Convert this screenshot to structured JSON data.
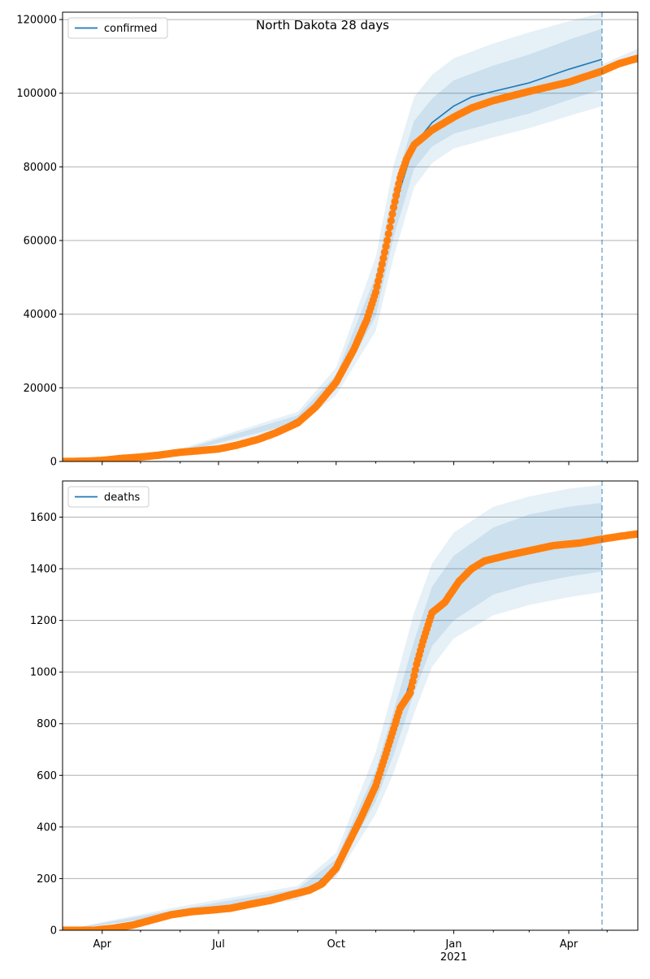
{
  "chart_data": {
    "type": "line",
    "title": "North Dakota 28 days",
    "x_start": "2020-03-01",
    "x_end": "2021-05-25",
    "forecast_date": "2021-04-27",
    "x_ticks_major": [
      {
        "date": "2020-04-01",
        "label": "Apr",
        "sublabel": ""
      },
      {
        "date": "2020-07-01",
        "label": "Jul",
        "sublabel": ""
      },
      {
        "date": "2020-10-01",
        "label": "Oct",
        "sublabel": ""
      },
      {
        "date": "2021-01-01",
        "label": "Jan",
        "sublabel": "2021"
      },
      {
        "date": "2021-04-01",
        "label": "Apr",
        "sublabel": ""
      }
    ],
    "x_ticks_minor": [
      "2020-05-01",
      "2020-06-01",
      "2020-08-01",
      "2020-09-01",
      "2020-11-01",
      "2020-12-01",
      "2021-02-01",
      "2021-03-01",
      "2021-05-01"
    ],
    "colors": {
      "model": "#1f77b4",
      "observed": "#ff7f0e",
      "band": "#1f77b4",
      "grid": "#b0b0b0",
      "forecast_line": "#1f77b4"
    },
    "panels": [
      {
        "legend": "confirmed",
        "ylim": [
          0,
          122000
        ],
        "yticks": [
          0,
          20000,
          40000,
          60000,
          80000,
          100000,
          120000
        ],
        "ytick_labels": [
          "0",
          "20000",
          "40000",
          "60000",
          "80000",
          "100000",
          "120000"
        ],
        "model": [
          [
            "2020-03-01",
            0
          ],
          [
            "2020-04-01",
            300
          ],
          [
            "2020-05-01",
            1200
          ],
          [
            "2020-06-01",
            2700
          ],
          [
            "2020-07-01",
            3600
          ],
          [
            "2020-08-01",
            6000
          ],
          [
            "2020-09-01",
            11500
          ],
          [
            "2020-09-15",
            15500
          ],
          [
            "2020-10-01",
            21500
          ],
          [
            "2020-10-15",
            30000
          ],
          [
            "2020-11-01",
            45000
          ],
          [
            "2020-11-10",
            60000
          ],
          [
            "2020-11-20",
            74000
          ],
          [
            "2020-12-01",
            86000
          ],
          [
            "2020-12-15",
            92000
          ],
          [
            "2021-01-01",
            96500
          ],
          [
            "2021-01-15",
            99000
          ],
          [
            "2021-02-01",
            100500
          ],
          [
            "2021-03-01",
            102800
          ],
          [
            "2021-04-01",
            106500
          ],
          [
            "2021-04-27",
            109200
          ]
        ],
        "band_inner": {
          "lower": [
            [
              "2020-03-01",
              0
            ],
            [
              "2020-06-01",
              2400
            ],
            [
              "2020-09-01",
              10500
            ],
            [
              "2020-10-01",
              19500
            ],
            [
              "2020-11-01",
              39500
            ],
            [
              "2020-11-15",
              61000
            ],
            [
              "2020-12-01",
              79500
            ],
            [
              "2020-12-15",
              85500
            ],
            [
              "2021-01-01",
              89000
            ],
            [
              "2021-02-01",
              92000
            ],
            [
              "2021-03-01",
              94500
            ],
            [
              "2021-04-01",
              98200
            ],
            [
              "2021-04-27",
              101000
            ]
          ],
          "upper": [
            [
              "2020-03-01",
              0
            ],
            [
              "2020-06-01",
              3000
            ],
            [
              "2020-09-01",
              12500
            ],
            [
              "2020-10-01",
              23500
            ],
            [
              "2020-11-01",
              50500
            ],
            [
              "2020-11-15",
              74500
            ],
            [
              "2020-12-01",
              92500
            ],
            [
              "2020-12-15",
              98500
            ],
            [
              "2021-01-01",
              103500
            ],
            [
              "2021-02-01",
              107500
            ],
            [
              "2021-03-01",
              110500
            ],
            [
              "2021-04-01",
              114500
            ],
            [
              "2021-04-27",
              117500
            ]
          ]
        },
        "band_outer": {
          "lower": [
            [
              "2020-03-01",
              0
            ],
            [
              "2020-06-01",
              2100
            ],
            [
              "2020-09-01",
              9500
            ],
            [
              "2020-10-01",
              18000
            ],
            [
              "2020-11-01",
              35500
            ],
            [
              "2020-11-15",
              55500
            ],
            [
              "2020-12-01",
              74500
            ],
            [
              "2020-12-15",
              81000
            ],
            [
              "2021-01-01",
              85000
            ],
            [
              "2021-02-01",
              88000
            ],
            [
              "2021-03-01",
              90500
            ],
            [
              "2021-04-01",
              93800
            ],
            [
              "2021-04-27",
              96500
            ]
          ],
          "upper": [
            [
              "2020-03-01",
              0
            ],
            [
              "2020-06-01",
              3400
            ],
            [
              "2020-09-01",
              13500
            ],
            [
              "2020-10-01",
              25500
            ],
            [
              "2020-11-01",
              55500
            ],
            [
              "2020-11-15",
              80500
            ],
            [
              "2020-12-01",
              99000
            ],
            [
              "2020-12-15",
              105000
            ],
            [
              "2021-01-01",
              109500
            ],
            [
              "2021-02-01",
              113500
            ],
            [
              "2021-03-01",
              116500
            ],
            [
              "2021-04-01",
              119500
            ],
            [
              "2021-04-27",
              121800
            ]
          ]
        },
        "band_future": {
          "lower": [
            [
              "2021-04-27",
              105500
            ],
            [
              "2021-05-10",
              107300
            ],
            [
              "2021-05-25",
              108300
            ]
          ],
          "upper": [
            [
              "2021-04-27",
              107800
            ],
            [
              "2021-05-10",
              109800
            ],
            [
              "2021-05-25",
              112000
            ]
          ]
        },
        "observed": [
          [
            "2020-03-01",
            0
          ],
          [
            "2020-03-20",
            100
          ],
          [
            "2020-04-01",
            300
          ],
          [
            "2020-04-15",
            800
          ],
          [
            "2020-05-01",
            1200
          ],
          [
            "2020-05-15",
            1700
          ],
          [
            "2020-06-01",
            2500
          ],
          [
            "2020-06-15",
            2900
          ],
          [
            "2020-07-01",
            3400
          ],
          [
            "2020-07-15",
            4400
          ],
          [
            "2020-08-01",
            6000
          ],
          [
            "2020-08-15",
            7800
          ],
          [
            "2020-09-01",
            10500
          ],
          [
            "2020-09-15",
            14800
          ],
          [
            "2020-10-01",
            21500
          ],
          [
            "2020-10-15",
            30500
          ],
          [
            "2020-10-25",
            38500
          ],
          [
            "2020-11-01",
            46000
          ],
          [
            "2020-11-05",
            52000
          ],
          [
            "2020-11-10",
            60000
          ],
          [
            "2020-11-15",
            69000
          ],
          [
            "2020-11-20",
            77000
          ],
          [
            "2020-11-25",
            82000
          ],
          [
            "2020-12-01",
            86000
          ],
          [
            "2020-12-15",
            90000
          ],
          [
            "2021-01-01",
            93500
          ],
          [
            "2021-01-15",
            96000
          ],
          [
            "2021-02-01",
            98000
          ],
          [
            "2021-03-01",
            100500
          ],
          [
            "2021-04-01",
            103000
          ],
          [
            "2021-04-27",
            106000
          ],
          [
            "2021-05-10",
            108000
          ],
          [
            "2021-05-25",
            109500
          ]
        ]
      },
      {
        "legend": "deaths",
        "ylim": [
          0,
          1740
        ],
        "yticks": [
          0,
          200,
          400,
          600,
          800,
          1000,
          1200,
          1400,
          1600
        ],
        "ytick_labels": [
          "0",
          "200",
          "400",
          "600",
          "800",
          "1000",
          "1200",
          "1400",
          "1600"
        ],
        "model": [
          [
            "2020-03-01",
            0
          ],
          [
            "2020-04-01",
            5
          ],
          [
            "2020-05-01",
            35
          ],
          [
            "2020-06-01",
            72
          ],
          [
            "2020-07-01",
            80
          ],
          [
            "2020-08-01",
            105
          ],
          [
            "2020-09-01",
            145
          ],
          [
            "2020-09-15",
            175
          ],
          [
            "2020-10-01",
            250
          ],
          [
            "2020-10-15",
            370
          ],
          [
            "2020-11-01",
            560
          ],
          [
            "2020-11-15",
            760
          ],
          [
            "2020-12-01",
            1010
          ],
          [
            "2020-12-15",
            1210
          ],
          [
            "2021-01-01",
            1320
          ],
          [
            "2021-01-15",
            1400
          ],
          [
            "2021-02-01",
            1440
          ],
          [
            "2021-03-01",
            1475
          ],
          [
            "2021-04-01",
            1495
          ],
          [
            "2021-04-27",
            1515
          ]
        ],
        "band_inner": {
          "lower": [
            [
              "2020-03-01",
              0
            ],
            [
              "2020-06-01",
              62
            ],
            [
              "2020-09-01",
              130
            ],
            [
              "2020-10-01",
              225
            ],
            [
              "2020-11-01",
              500
            ],
            [
              "2020-11-15",
              680
            ],
            [
              "2020-12-01",
              920
            ],
            [
              "2020-12-15",
              1100
            ],
            [
              "2021-01-01",
              1200
            ],
            [
              "2021-02-01",
              1300
            ],
            [
              "2021-03-01",
              1340
            ],
            [
              "2021-04-01",
              1370
            ],
            [
              "2021-04-27",
              1390
            ]
          ],
          "upper": [
            [
              "2020-03-01",
              0
            ],
            [
              "2020-06-01",
              82
            ],
            [
              "2020-09-01",
              160
            ],
            [
              "2020-10-01",
              275
            ],
            [
              "2020-11-01",
              620
            ],
            [
              "2020-11-15",
              850
            ],
            [
              "2020-12-01",
              1120
            ],
            [
              "2020-12-15",
              1330
            ],
            [
              "2021-01-01",
              1450
            ],
            [
              "2021-02-01",
              1560
            ],
            [
              "2021-03-01",
              1610
            ],
            [
              "2021-04-01",
              1640
            ],
            [
              "2021-04-27",
              1655
            ]
          ]
        },
        "band_outer": {
          "lower": [
            [
              "2020-03-01",
              0
            ],
            [
              "2020-06-01",
              55
            ],
            [
              "2020-09-01",
              118
            ],
            [
              "2020-10-01",
              205
            ],
            [
              "2020-11-01",
              450
            ],
            [
              "2020-11-15",
              610
            ],
            [
              "2020-12-01",
              840
            ],
            [
              "2020-12-15",
              1020
            ],
            [
              "2021-01-01",
              1130
            ],
            [
              "2021-02-01",
              1220
            ],
            [
              "2021-03-01",
              1260
            ],
            [
              "2021-04-01",
              1290
            ],
            [
              "2021-04-27",
              1310
            ]
          ],
          "upper": [
            [
              "2020-03-01",
              0
            ],
            [
              "2020-06-01",
              92
            ],
            [
              "2020-09-01",
              172
            ],
            [
              "2020-10-01",
              300
            ],
            [
              "2020-11-01",
              690
            ],
            [
              "2020-11-15",
              940
            ],
            [
              "2020-12-01",
              1230
            ],
            [
              "2020-12-15",
              1420
            ],
            [
              "2021-01-01",
              1540
            ],
            [
              "2021-02-01",
              1640
            ],
            [
              "2021-03-01",
              1680
            ],
            [
              "2021-04-01",
              1710
            ],
            [
              "2021-04-27",
              1725
            ]
          ]
        },
        "band_future": {
          "lower": [
            [
              "2021-04-27",
              1500
            ],
            [
              "2021-05-10",
              1515
            ],
            [
              "2021-05-25",
              1525
            ]
          ],
          "upper": [
            [
              "2021-04-27",
              1525
            ],
            [
              "2021-05-10",
              1540
            ],
            [
              "2021-05-25",
              1550
            ]
          ]
        },
        "observed": [
          [
            "2020-03-01",
            0
          ],
          [
            "2020-03-25",
            0
          ],
          [
            "2020-04-10",
            8
          ],
          [
            "2020-04-25",
            20
          ],
          [
            "2020-05-10",
            40
          ],
          [
            "2020-05-25",
            60
          ],
          [
            "2020-06-10",
            72
          ],
          [
            "2020-06-25",
            78
          ],
          [
            "2020-07-10",
            85
          ],
          [
            "2020-07-25",
            100
          ],
          [
            "2020-08-10",
            115
          ],
          [
            "2020-08-25",
            135
          ],
          [
            "2020-09-10",
            155
          ],
          [
            "2020-09-20",
            180
          ],
          [
            "2020-10-01",
            240
          ],
          [
            "2020-10-10",
            330
          ],
          [
            "2020-10-20",
            430
          ],
          [
            "2020-11-01",
            560
          ],
          [
            "2020-11-10",
            700
          ],
          [
            "2020-11-20",
            860
          ],
          [
            "2020-11-28",
            920
          ],
          [
            "2020-12-03",
            1030
          ],
          [
            "2020-12-08",
            1120
          ],
          [
            "2020-12-15",
            1230
          ],
          [
            "2020-12-25",
            1270
          ],
          [
            "2021-01-05",
            1350
          ],
          [
            "2021-01-15",
            1400
          ],
          [
            "2021-01-25",
            1430
          ],
          [
            "2021-02-10",
            1450
          ],
          [
            "2021-03-01",
            1470
          ],
          [
            "2021-03-20",
            1490
          ],
          [
            "2021-04-10",
            1500
          ],
          [
            "2021-04-27",
            1515
          ],
          [
            "2021-05-10",
            1525
          ],
          [
            "2021-05-25",
            1535
          ]
        ]
      }
    ]
  }
}
